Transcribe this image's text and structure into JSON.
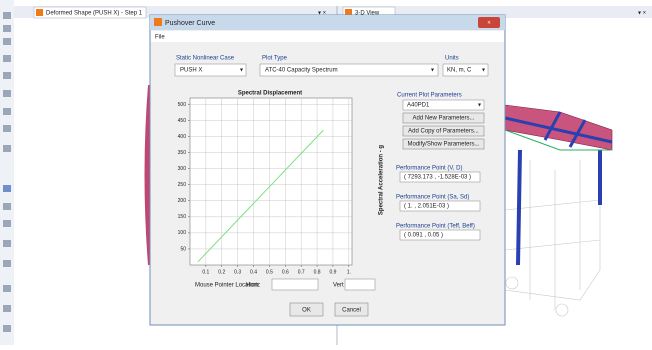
{
  "background": {
    "left_tab": "Deformed Shape (PUSH X) - Step 1",
    "right_tab": "3-D View"
  },
  "dialog": {
    "title": "Pushover Curve",
    "menu": "File",
    "case_label": "Static Nonlinear Case",
    "case_value": "PUSH X",
    "plot_type_label": "Plot Type",
    "plot_type_value": "ATC-40 Capacity Spectrum",
    "units_label": "Units",
    "units_value": "KN, m, C",
    "params_label": "Current Plot Parameters",
    "params_value": "A40PD1",
    "buttons": [
      "Add New Parameters...",
      "Add Copy of Parameters...",
      "Modify/Show Parameters..."
    ],
    "performance": [
      {
        "label": "Performance Point (V, D)",
        "value": "( 7293.173 , -1.528E-03 )"
      },
      {
        "label": "Performance Point (Sa, Sd)",
        "value": "( 1. , 2.051E-03 )"
      },
      {
        "label": "Performance Point (Teff, Beff)",
        "value": "( 0.091 , 0.05 )"
      }
    ],
    "mouse_label": "Mouse Pointer Location",
    "horiz_label": "Horiz",
    "vert_label": "Vert",
    "ok": "OK",
    "cancel": "Cancel",
    "plot": {
      "type": "line",
      "title": "Spectral Displacement",
      "y_label": "Spectral Acceleration - g",
      "x": [
        0.05,
        0.84
      ],
      "values": [
        10,
        420
      ],
      "color": "#7ee07e",
      "xlim": [
        0,
        1.02
      ],
      "ylim": [
        0,
        520
      ],
      "xticks": [
        0.1,
        0.2,
        0.3,
        0.4,
        0.5,
        0.6,
        0.7,
        0.8,
        0.9,
        {
          "value": 1,
          "label": "1."
        }
      ],
      "yticks": [
        50,
        100,
        150,
        200,
        250,
        300,
        350,
        400,
        450,
        500
      ],
      "grid": true
    }
  }
}
